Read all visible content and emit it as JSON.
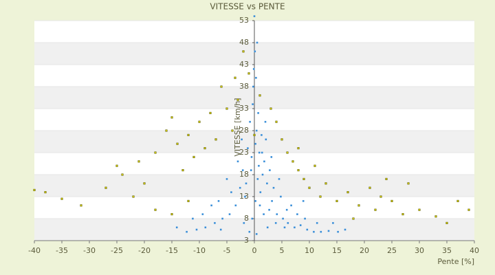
{
  "chart_data": {
    "type": "scatter",
    "title": "VITESSE vs PENTE",
    "x_label": "Pente [%]",
    "y_label": "VITESSE [km/h]",
    "xlim": [
      -40,
      40
    ],
    "ylim": [
      3,
      53
    ],
    "xticks": [
      -40,
      -35,
      -30,
      -25,
      -20,
      -15,
      -10,
      -5,
      0,
      5,
      10,
      15,
      20,
      25,
      30,
      35,
      40
    ],
    "yticks": [
      3,
      8,
      13,
      18,
      23,
      28,
      33,
      38,
      43,
      48,
      53
    ],
    "grid": true,
    "series": [
      {
        "color": "#c8c000",
        "x": [
          -38,
          -35,
          -31.5,
          -27,
          -24,
          -21,
          -20,
          -18,
          -16,
          -15,
          -14,
          -13,
          -12,
          -11,
          -10,
          -9,
          -8,
          -7,
          -6,
          -5,
          -4,
          -3,
          -1,
          0,
          1,
          3,
          4,
          5,
          6,
          7,
          8,
          9,
          10,
          12,
          13,
          15,
          17,
          19,
          21,
          23,
          25,
          27,
          30,
          33,
          35,
          37,
          39,
          -22,
          -18,
          -15,
          -12,
          8,
          11,
          18,
          22,
          28,
          -25,
          -40,
          24,
          -3.5,
          -2
        ],
        "y": [
          14,
          12.5,
          11,
          15,
          18,
          21,
          16,
          23,
          28,
          31,
          25,
          19,
          27,
          22,
          30,
          24,
          32,
          26,
          38,
          33,
          28,
          35,
          41,
          27,
          36,
          33,
          30,
          26,
          23,
          21,
          19,
          17,
          15,
          13,
          16,
          12,
          14,
          11,
          15,
          13,
          12,
          9,
          10,
          8.5,
          7,
          12,
          10,
          13,
          10,
          9,
          12,
          24,
          20,
          8,
          10,
          16,
          20,
          14.5,
          17,
          40,
          46
        ]
      },
      {
        "color": "#3a8fd9",
        "x": [
          -0.5,
          0.2,
          0.8,
          1.5,
          -1.2,
          2.3,
          0.4,
          -0.8,
          1.1,
          3.2,
          -2.1,
          0.6,
          1.8,
          -0.3,
          2.7,
          4.1,
          -1.7,
          0.9,
          3.5,
          5.2,
          -3.4,
          6.1,
          -4.5,
          7.3,
          -5.8,
          8.4,
          -7.2,
          9.6,
          -8.9,
          10.8,
          -10.5,
          12.1,
          -12.3,
          13.5,
          -14.1,
          15.2,
          16.5,
          -6.5,
          4.8,
          2.1,
          -0.1,
          0.3,
          0.1,
          -0.2,
          0.5,
          1.3,
          -1.5,
          2.8,
          -2.6,
          3.9,
          6.7,
          -4.2,
          5.5,
          7.8,
          -6.1,
          9.2,
          11.4,
          -9.4,
          -11.2,
          14.3,
          0.0,
          0.2,
          -0.4,
          1.7,
          2.4,
          -0.9,
          3.1,
          0.7,
          1.0,
          -1.9,
          -3.0,
          4.5,
          -2.3,
          2.0,
          0.4,
          -0.6,
          1.4,
          5.9,
          -5.0,
          -7.8,
          8.9
        ],
        "y": [
          22,
          25,
          20,
          18,
          24,
          16,
          28,
          30,
          14,
          12,
          19,
          17,
          21,
          34,
          10,
          9,
          13,
          23,
          15,
          8,
          11,
          7,
          9,
          6,
          8,
          6.5,
          7,
          5.5,
          6,
          5,
          5.5,
          5,
          5,
          5.2,
          6,
          5,
          5.5,
          12,
          13,
          26,
          42,
          40,
          46,
          38,
          48,
          27,
          16,
          19,
          15,
          7,
          11,
          14,
          6,
          9,
          5.5,
          8,
          7,
          9,
          8,
          7,
          54,
          12,
          8,
          9,
          6,
          5,
          22,
          32,
          11,
          7,
          21,
          17,
          26,
          30,
          4.5,
          19,
          23,
          10,
          17,
          11,
          12
        ]
      }
    ]
  }
}
